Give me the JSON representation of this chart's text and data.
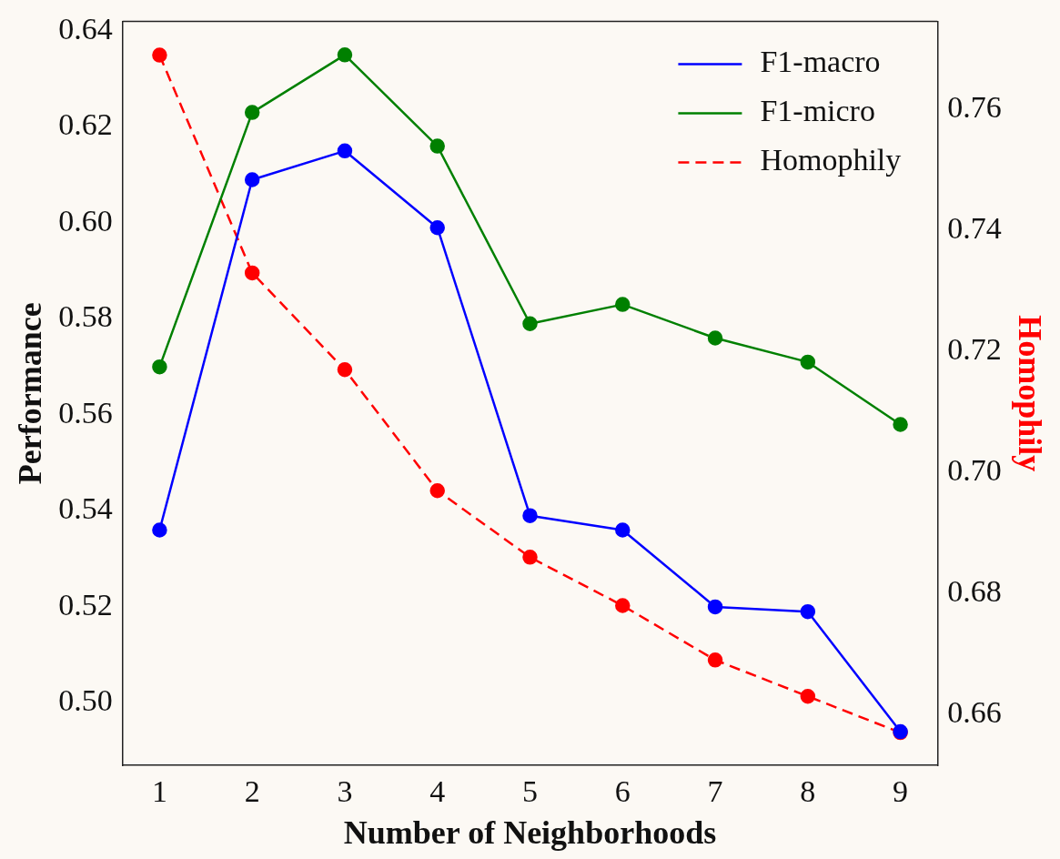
{
  "chart_data": {
    "type": "line",
    "xlabel": "Number of Neighborhoods",
    "ylabel": "Performance",
    "y2label": "Homophily",
    "x": [
      1,
      2,
      3,
      4,
      5,
      6,
      7,
      8,
      9
    ],
    "xlim": [
      0.6,
      9.4
    ],
    "xticks": [
      1,
      2,
      3,
      4,
      5,
      6,
      7,
      8,
      9
    ],
    "ylim": [
      0.487,
      0.642
    ],
    "yticks": [
      {
        "value": 0.5,
        "label": "0.50"
      },
      {
        "value": 0.52,
        "label": "0.52"
      },
      {
        "value": 0.54,
        "label": "0.54"
      },
      {
        "value": 0.56,
        "label": "0.56"
      },
      {
        "value": 0.58,
        "label": "0.58"
      },
      {
        "value": 0.6,
        "label": "0.60"
      },
      {
        "value": 0.62,
        "label": "0.62"
      },
      {
        "value": 0.64,
        "label": "0.64"
      }
    ],
    "y2lim": [
      0.6516,
      0.7746
    ],
    "y2ticks": [
      {
        "value": 0.66,
        "label": "0.66"
      },
      {
        "value": 0.68,
        "label": "0.68"
      },
      {
        "value": 0.7,
        "label": "0.70"
      },
      {
        "value": 0.72,
        "label": "0.72"
      },
      {
        "value": 0.74,
        "label": "0.74"
      },
      {
        "value": 0.76,
        "label": "0.76"
      }
    ],
    "series": [
      {
        "name": "F1-macro",
        "color": "#0000ff",
        "values": [
          0.536,
          0.609,
          0.615,
          0.599,
          0.539,
          0.536,
          0.52,
          0.519,
          0.494
        ]
      },
      {
        "name": "F1-micro",
        "color": "#008000",
        "values": [
          0.57,
          0.623,
          0.635,
          0.616,
          0.579,
          0.583,
          0.576,
          0.571,
          0.558
        ]
      },
      {
        "name": "Homophily",
        "color": "#ff0000",
        "axis": "y2",
        "line_style": "dashed",
        "values": [
          0.769,
          0.733,
          0.717,
          0.697,
          0.686,
          0.678,
          0.669,
          0.663,
          0.657
        ]
      }
    ],
    "marker": "circle",
    "grid": false,
    "legend": "top right"
  }
}
